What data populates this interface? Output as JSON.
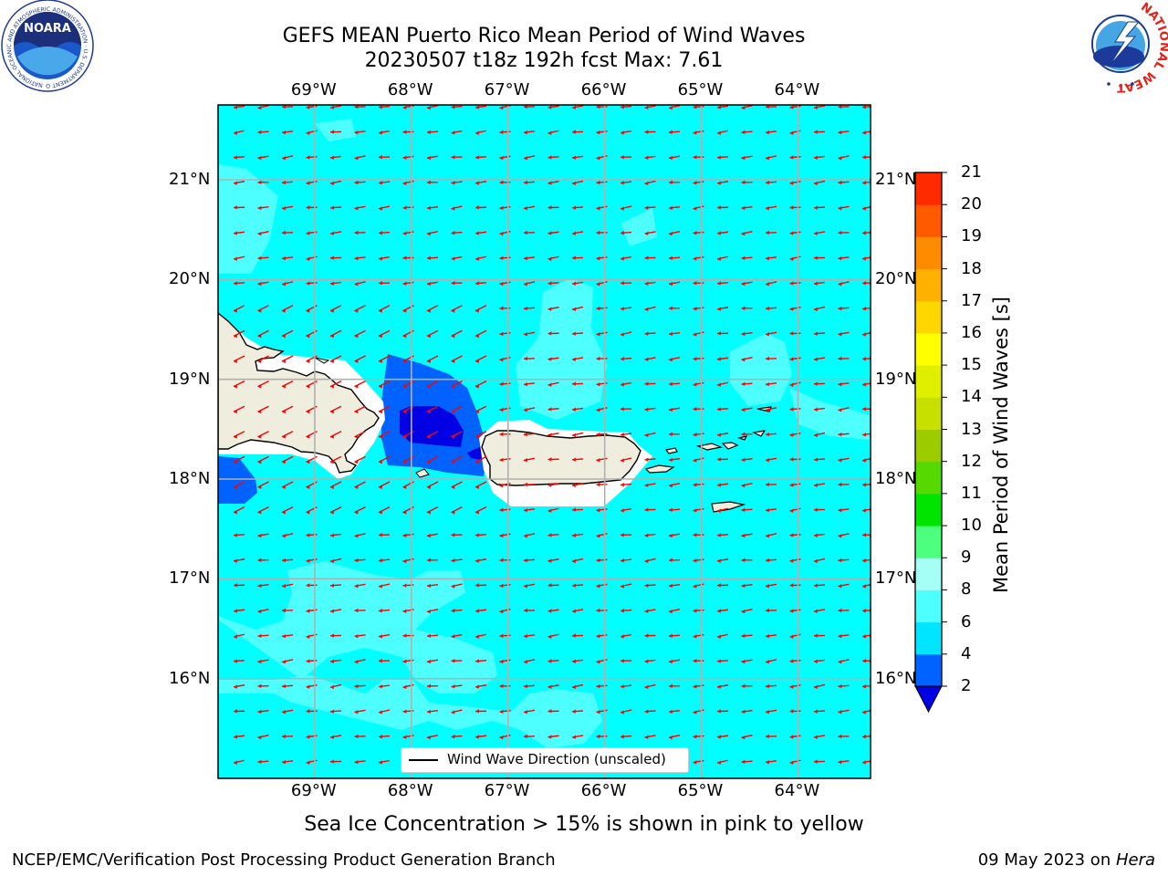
{
  "title": {
    "line1": "GEFS MEAN Puerto Rico Mean Period of Wind Waves",
    "line2": "20230507 t18z 192h fcst   Max: 7.61"
  },
  "logos": {
    "left": {
      "text": "NOARA",
      "ring_text": "NATIONAL OCEANIC AND ATMOSPHERIC ADMINISTRATION · U.S. DEPARTMENT OF COMMERCE",
      "icon": "noaa-logo"
    },
    "right": {
      "ring_text": "NATIONAL WEATHER SERVICE",
      "icon": "nws-logo"
    }
  },
  "map": {
    "lon_ticks": [
      "69°W",
      "68°W",
      "67°W",
      "66°W",
      "65°W",
      "64°W"
    ],
    "lat_ticks": [
      "21°N",
      "20°N",
      "19°N",
      "18°N",
      "17°N",
      "16°N"
    ],
    "lon_range": [
      -70.0,
      -63.25
    ],
    "lat_range": [
      15.0,
      21.75
    ],
    "lon_values": [
      -69,
      -68,
      -67,
      -66,
      -65,
      -64
    ],
    "lat_values": [
      21,
      20,
      19,
      18,
      17,
      16
    ],
    "grid": true,
    "ocean_color": "#00ffff",
    "land_color": "#efedde",
    "arrow_color": "#ff0000",
    "arrow_direction": "westward"
  },
  "legend": {
    "label": "Wind Wave Direction (unscaled)",
    "placement": "bottom-center"
  },
  "colorbar": {
    "label": "Mean Period of Wind Waves [s]",
    "ticks": [
      "2",
      "4",
      "6",
      "8",
      "9",
      "10",
      "11",
      "12",
      "13",
      "14",
      "15",
      "16",
      "17",
      "18",
      "19",
      "20",
      "21"
    ],
    "colors": [
      "#0063ff",
      "#00e5ff",
      "#4dffff",
      "#a6fff5",
      "#4cff7f",
      "#00e500",
      "#55d900",
      "#9ccc00",
      "#c8e000",
      "#e0ee00",
      "#ffff00",
      "#ffd700",
      "#ffb000",
      "#ff8c00",
      "#ff5a00",
      "#ff2a00",
      "#ff0000"
    ],
    "under_color": "#0000e5"
  },
  "ice_note": "Sea Ice Concentration > 15% is shown in pink to yellow",
  "footer": {
    "left": "NCEP/EMC/Verification Post Processing Product Generation Branch",
    "right_date": "09 May 2023 on ",
    "right_host": "Hera"
  }
}
